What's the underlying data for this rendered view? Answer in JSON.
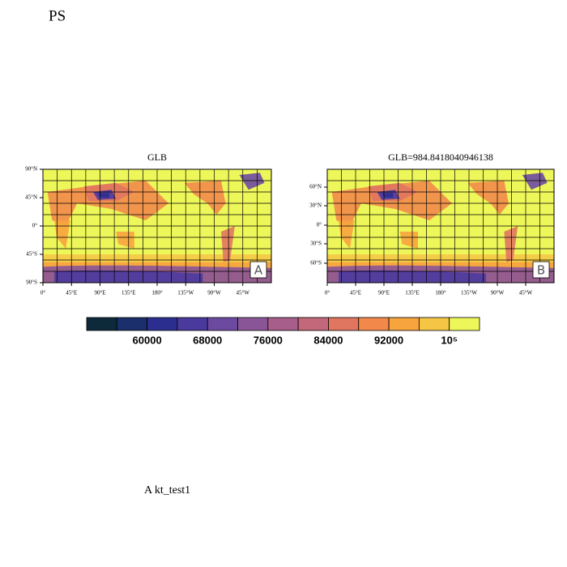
{
  "header": {
    "title": "PS"
  },
  "panels": [
    {
      "title": "GLB",
      "label": "A",
      "lat_ticks": [
        "90°N",
        "45°N",
        "0°",
        "45°S",
        "90°S"
      ],
      "lon_ticks": [
        "0°",
        "45°E",
        "90°E",
        "135°E",
        "180°",
        "135°W",
        "90°W",
        "45°W"
      ]
    },
    {
      "title": "GLB=984.8418040946138",
      "label": "B",
      "lat_ticks": [
        "60°N",
        "30°N",
        "0°",
        "30°S",
        "60°S"
      ],
      "lon_ticks": [
        "0°",
        "45°E",
        "90°E",
        "135°E",
        "180°",
        "135°W",
        "90°W",
        "45°W"
      ]
    }
  ],
  "colorbar": {
    "colors": [
      "#0d2a3a",
      "#1a2f6b",
      "#2c2e8f",
      "#4b3a9e",
      "#6b4aa0",
      "#8a5597",
      "#a85e8a",
      "#c2687a",
      "#e07560",
      "#f2894a",
      "#f7a33e",
      "#f5c645",
      "#eef75a"
    ],
    "labels": [
      "60000",
      "68000",
      "76000",
      "84000",
      "92000",
      "10⁵"
    ]
  },
  "footer": {
    "text": "A  kt_test1"
  }
}
